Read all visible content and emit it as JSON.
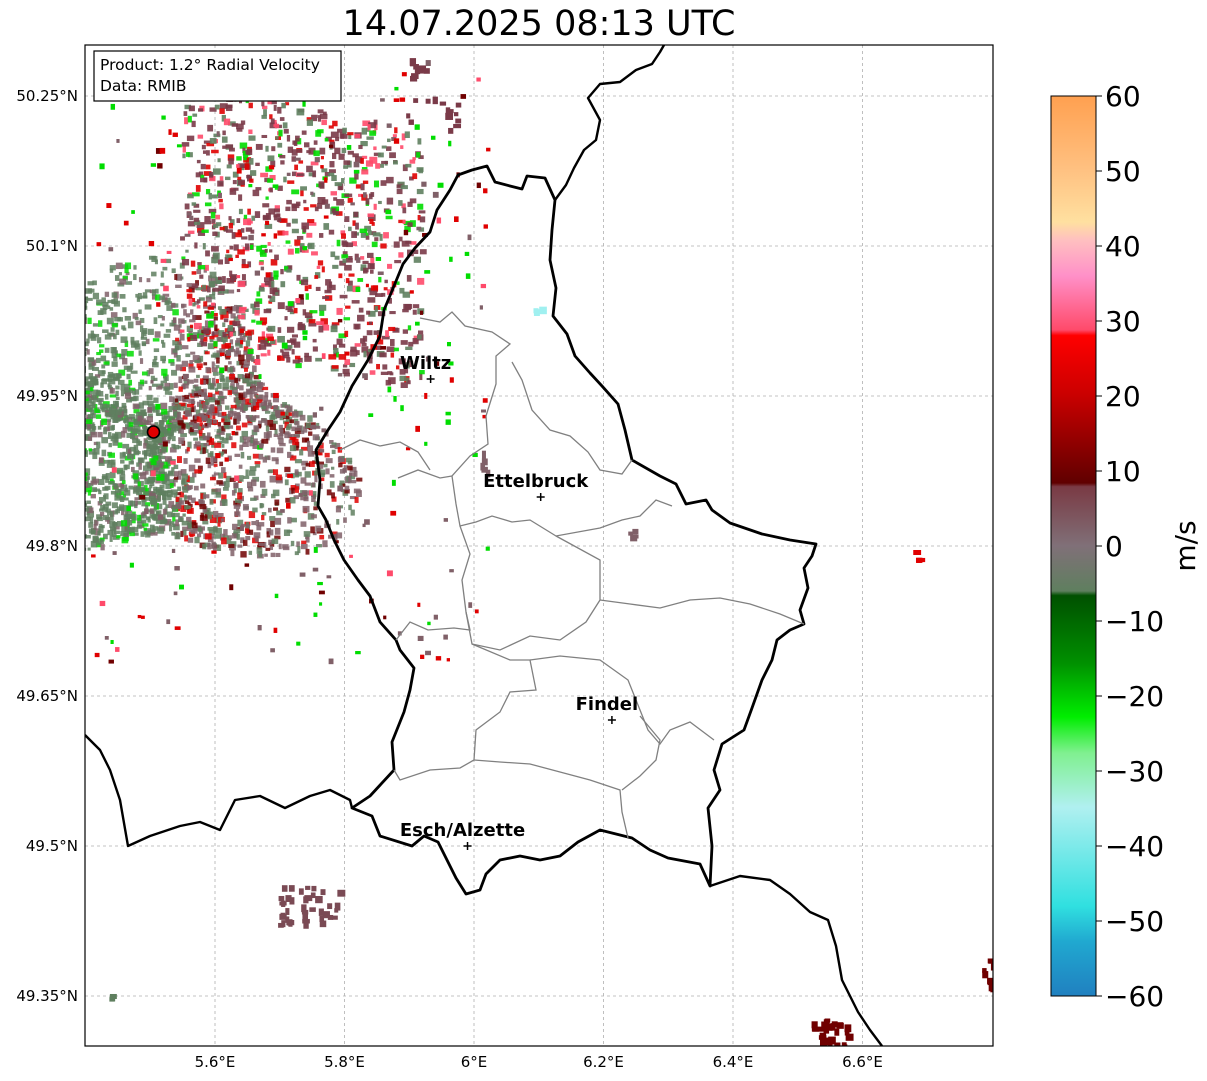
{
  "title": "14.07.2025 08:13 UTC",
  "info": {
    "product": "Product: 1.2° Radial Velocity",
    "data": "Data: RMIB"
  },
  "axes": {
    "lat_labels": [
      "50.25°N",
      "50.1°N",
      "49.95°N",
      "49.8°N",
      "49.65°N",
      "49.5°N",
      "49.35°N"
    ],
    "lon_labels": [
      "5.6°E",
      "5.8°E",
      "6°E",
      "6.2°E",
      "6.4°E",
      "6.6°E"
    ],
    "lat_values": [
      50.25,
      50.1,
      49.95,
      49.8,
      49.65,
      49.5,
      49.35
    ],
    "lon_values": [
      5.6,
      5.8,
      6.0,
      6.2,
      6.4,
      6.6
    ],
    "lon_range": [
      5.4,
      6.8
    ],
    "lat_range": [
      49.3,
      50.3
    ]
  },
  "cities": [
    {
      "name": "Wiltz",
      "lon": 5.933,
      "lat": 49.967
    },
    {
      "name": "Ettelbruck",
      "lon": 6.103,
      "lat": 49.849
    },
    {
      "name": "Findel",
      "lon": 6.213,
      "lat": 49.626
    },
    {
      "name": "Esch/Alzette",
      "lon": 5.99,
      "lat": 49.5
    }
  ],
  "radar_site": {
    "lon": 5.505,
    "lat": 49.914
  },
  "colorbar": {
    "unit": "m/s",
    "ticks": [
      "60",
      "50",
      "40",
      "30",
      "20",
      "10",
      "0",
      "−10",
      "−20",
      "−30",
      "−40",
      "−50",
      "−60"
    ],
    "min": -60,
    "max": 60,
    "colors": {
      "pos_high": "#ffa050",
      "pos_orange": "#ffd090",
      "pos_pink": "#ff90c8",
      "pos_red_pink": "#ff4a6a",
      "pos_red": "#e00000",
      "pos_dark_red": "#700000",
      "near_zero_pos": "#806068",
      "near_zero_neg": "#5f7f5f",
      "neg_dark_green": "#006000",
      "neg_green": "#00dd00",
      "neg_light_green": "#90f0a0",
      "neg_cyan": "#40e0e0",
      "neg_blue": "#2080c0"
    }
  }
}
